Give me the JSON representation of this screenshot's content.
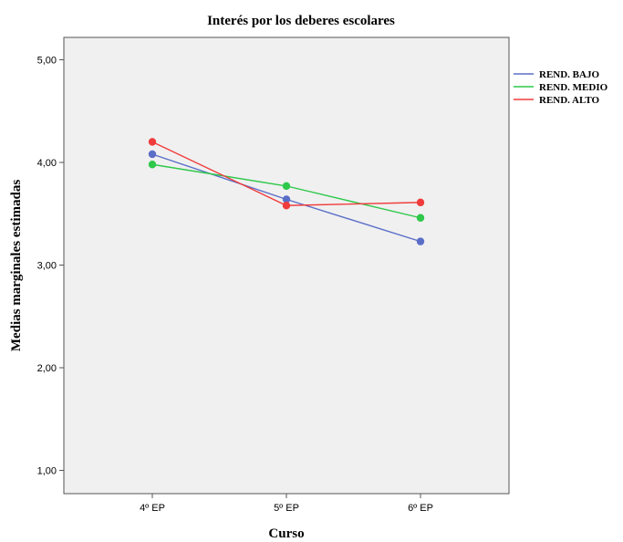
{
  "chart_data": {
    "type": "line",
    "title": "Interés por los deberes escolares",
    "xlabel": "Curso",
    "ylabel": "Medias marginales estimadas",
    "categories": [
      "4º EP",
      "5º EP",
      "6º EP"
    ],
    "y_ticks": [
      "1,00",
      "2,00",
      "3,00",
      "4,00",
      "5,00"
    ],
    "ylim": [
      0.95,
      5.2
    ],
    "grid": false,
    "legend_position": "right",
    "series": [
      {
        "name": "REND. BAJO",
        "color": "#5a6ec8",
        "values": [
          4.08,
          3.64,
          3.23
        ]
      },
      {
        "name": "REND. MEDIO",
        "color": "#2ec84a",
        "values": [
          3.98,
          3.77,
          3.46
        ]
      },
      {
        "name": "REND. ALTO",
        "color": "#f03c3c",
        "values": [
          4.2,
          3.58,
          3.61
        ]
      }
    ]
  }
}
